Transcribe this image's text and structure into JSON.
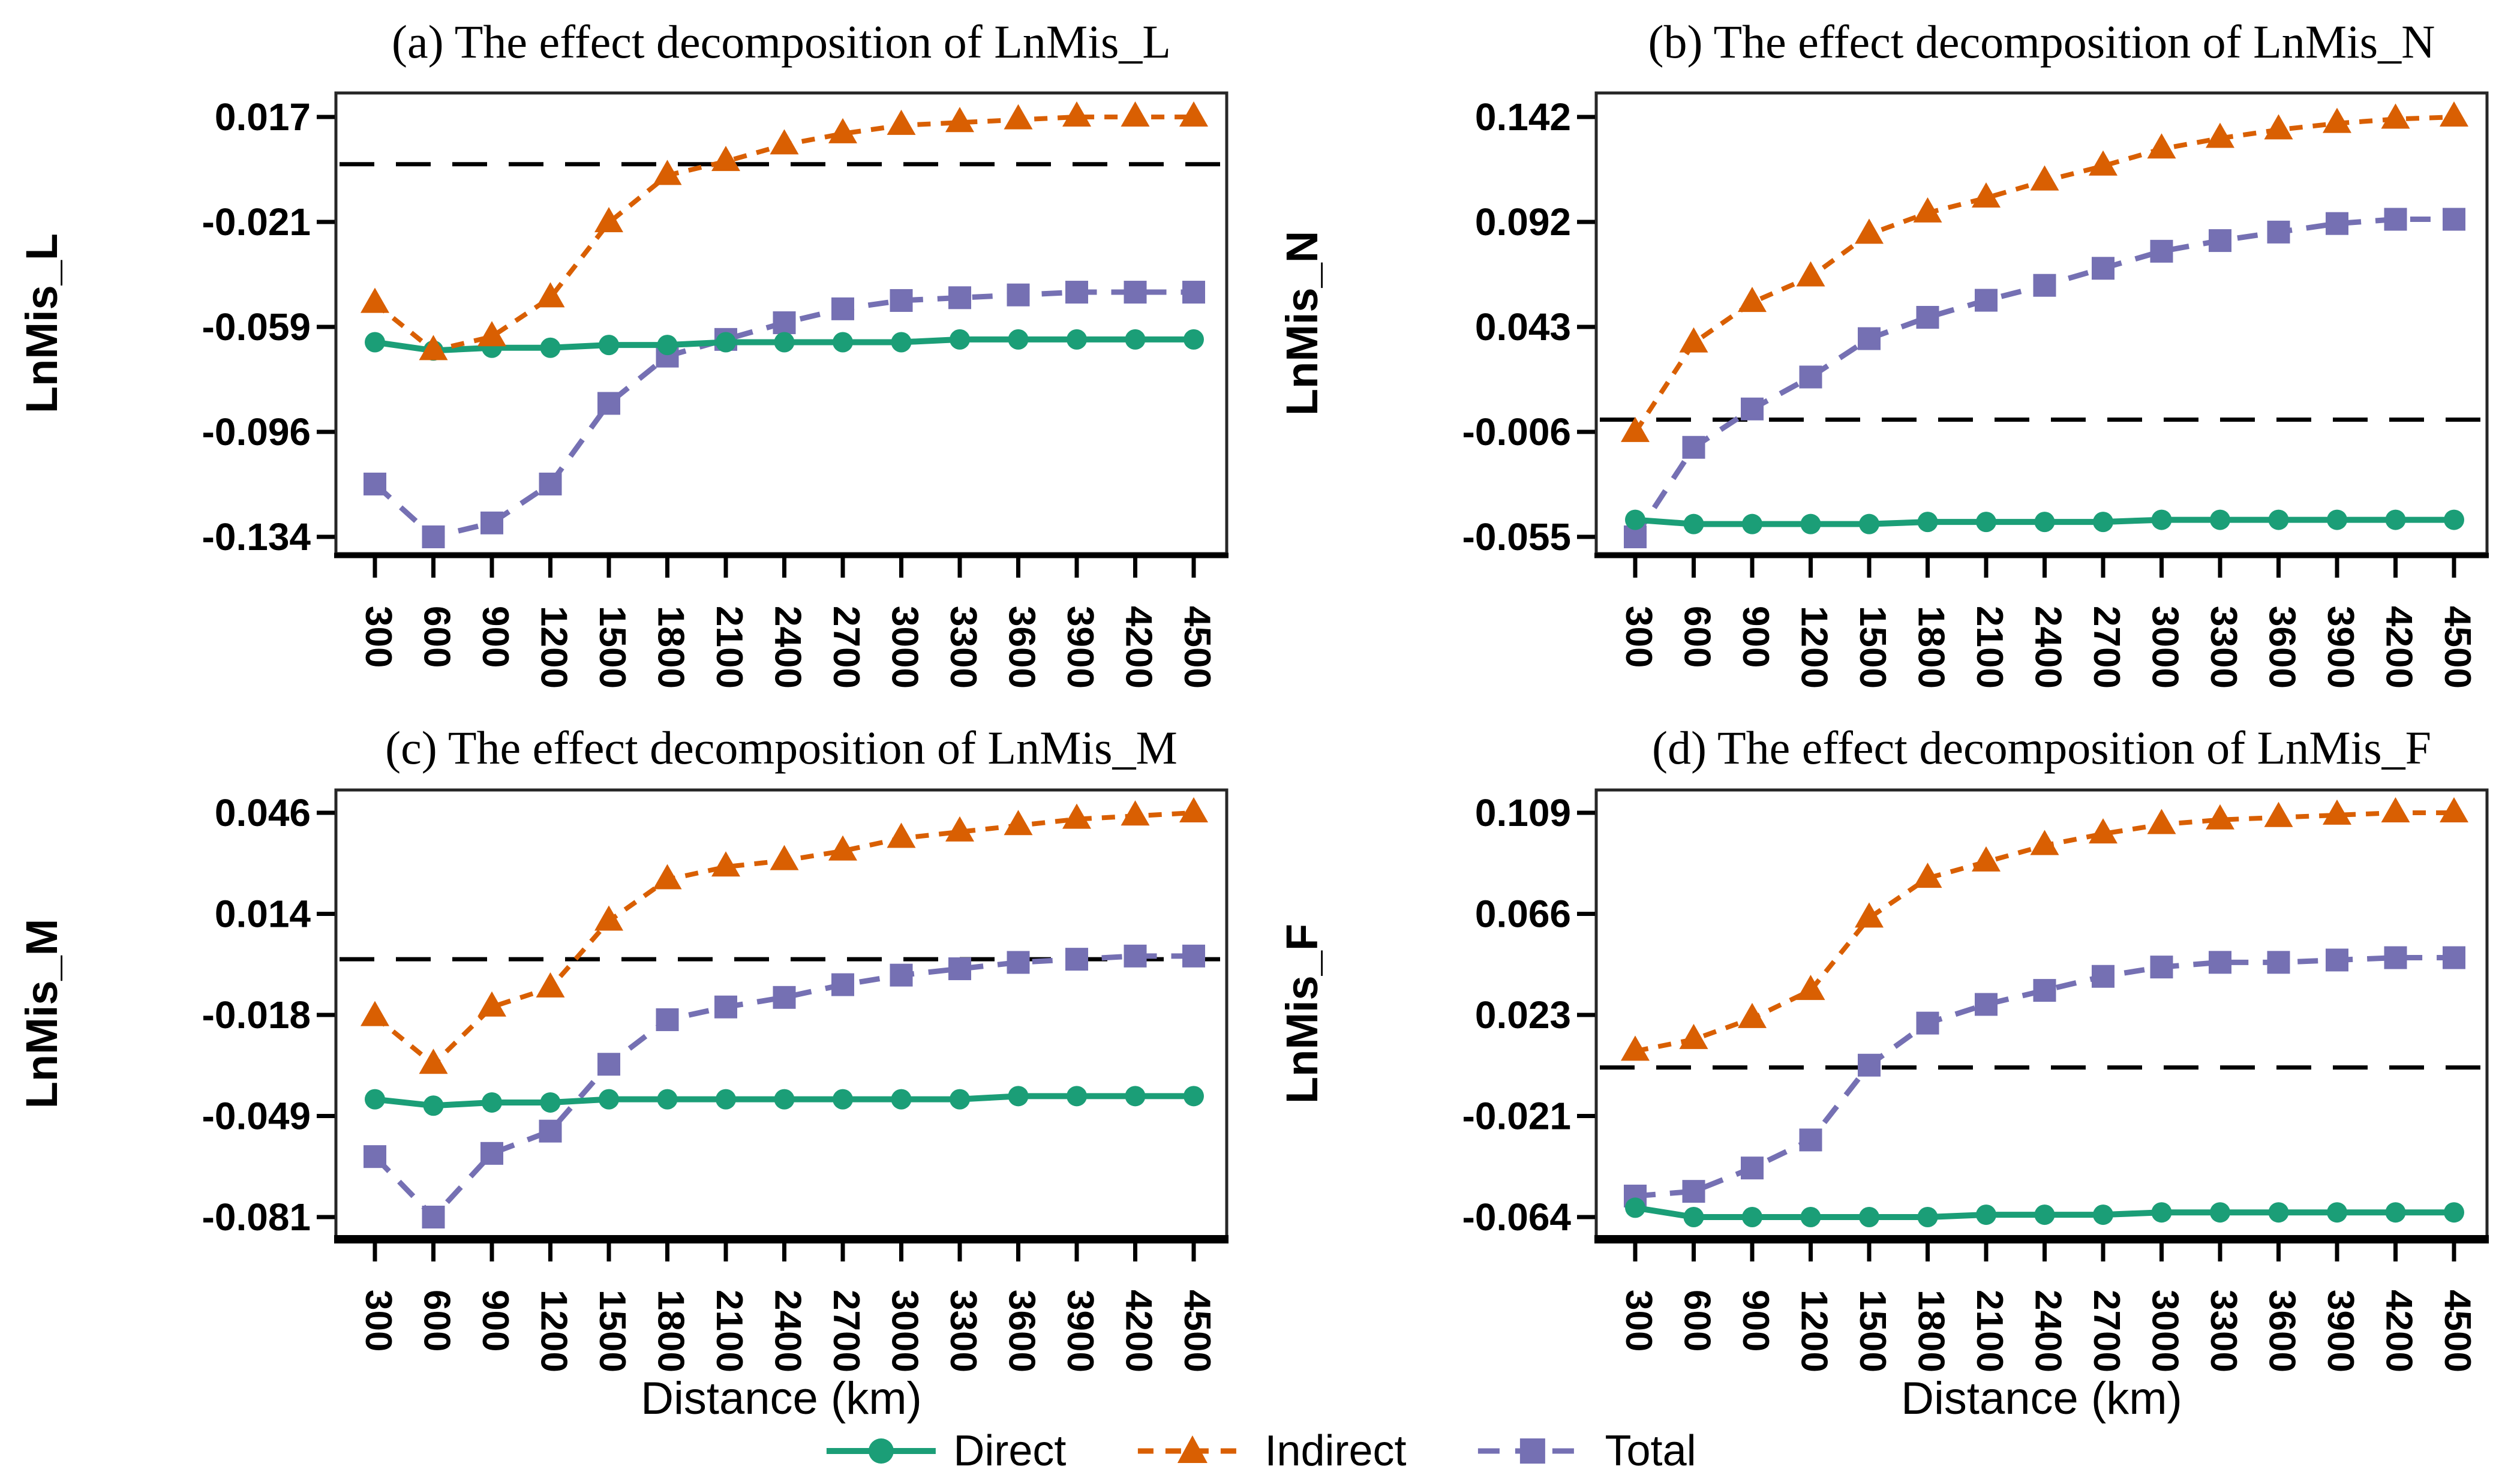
{
  "figure": {
    "xlabel": "Distance (km)",
    "x_categories": [
      300,
      600,
      900,
      1200,
      1500,
      1800,
      2100,
      2400,
      2700,
      3000,
      3300,
      3600,
      3900,
      4200,
      4500
    ],
    "colors": {
      "direct": "#1b9e77",
      "indirect": "#d95f02",
      "total": "#7570b3",
      "zero_line": "#000000",
      "axis": "#262626"
    },
    "legend": [
      {
        "name": "Direct",
        "marker": "circle",
        "line": "solid",
        "color": "#1b9e77"
      },
      {
        "name": "Indirect",
        "marker": "triangle",
        "line": "dashed",
        "color": "#d95f02"
      },
      {
        "name": "Total",
        "marker": "square",
        "line": "dashed",
        "color": "#7570b3"
      }
    ]
  },
  "chart_data": [
    {
      "type": "line",
      "panel": "a",
      "title": "(a) The effect decomposition of LnMis_L",
      "ylabel": "LnMis_L",
      "xlabel": "",
      "yticks": [
        0.017,
        -0.021,
        -0.059,
        -0.096,
        -0.134
      ],
      "zero_line": true,
      "grid": false,
      "x": [
        300,
        600,
        900,
        1200,
        1500,
        1800,
        2100,
        2400,
        2700,
        3000,
        3300,
        3600,
        3900,
        4200,
        4500
      ],
      "series": [
        {
          "name": "Direct",
          "values": [
            -0.064,
            -0.067,
            -0.066,
            -0.066,
            -0.065,
            -0.065,
            -0.064,
            -0.064,
            -0.064,
            -0.064,
            -0.063,
            -0.063,
            -0.063,
            -0.063,
            -0.063
          ]
        },
        {
          "name": "Indirect",
          "values": [
            -0.05,
            -0.067,
            -0.062,
            -0.048,
            -0.021,
            -0.004,
            0.001,
            0.007,
            0.011,
            0.014,
            0.015,
            0.016,
            0.017,
            0.017,
            0.017
          ]
        },
        {
          "name": "Total",
          "values": [
            -0.115,
            -0.134,
            -0.129,
            -0.115,
            -0.086,
            -0.069,
            -0.063,
            -0.057,
            -0.052,
            -0.049,
            -0.048,
            -0.047,
            -0.046,
            -0.046,
            -0.046
          ]
        }
      ]
    },
    {
      "type": "line",
      "panel": "b",
      "title": "(b) The effect decomposition of LnMis_N",
      "ylabel": "LnMis_N",
      "xlabel": "",
      "yticks": [
        0.142,
        0.092,
        0.043,
        -0.006,
        -0.055
      ],
      "zero_line": true,
      "grid": false,
      "x": [
        300,
        600,
        900,
        1200,
        1500,
        1800,
        2100,
        2400,
        2700,
        3000,
        3300,
        3600,
        3900,
        4200,
        4500
      ],
      "series": [
        {
          "name": "Direct",
          "values": [
            -0.047,
            -0.049,
            -0.049,
            -0.049,
            -0.049,
            -0.048,
            -0.048,
            -0.048,
            -0.048,
            -0.047,
            -0.047,
            -0.047,
            -0.047,
            -0.047,
            -0.047
          ]
        },
        {
          "name": "Indirect",
          "values": [
            -0.006,
            0.036,
            0.055,
            0.067,
            0.087,
            0.097,
            0.104,
            0.112,
            0.119,
            0.127,
            0.132,
            0.136,
            0.139,
            0.141,
            0.142
          ]
        },
        {
          "name": "Total",
          "values": [
            -0.055,
            -0.013,
            0.005,
            0.02,
            0.038,
            0.048,
            0.056,
            0.063,
            0.071,
            0.079,
            0.084,
            0.088,
            0.092,
            0.094,
            0.094
          ]
        }
      ]
    },
    {
      "type": "line",
      "panel": "c",
      "title": "(c) The effect decomposition of LnMis_M",
      "ylabel": "LnMis_M",
      "xlabel": "Distance (km)",
      "yticks": [
        0.046,
        0.014,
        -0.018,
        -0.049,
        -0.081
      ],
      "zero_line": true,
      "grid": false,
      "x": [
        300,
        600,
        900,
        1200,
        1500,
        1800,
        2100,
        2400,
        2700,
        3000,
        3300,
        3600,
        3900,
        4200,
        4500
      ],
      "series": [
        {
          "name": "Direct",
          "values": [
            -0.044,
            -0.046,
            -0.045,
            -0.045,
            -0.044,
            -0.044,
            -0.044,
            -0.044,
            -0.044,
            -0.044,
            -0.044,
            -0.043,
            -0.043,
            -0.043,
            -0.043
          ]
        },
        {
          "name": "Indirect",
          "values": [
            -0.018,
            -0.033,
            -0.015,
            -0.009,
            0.012,
            0.025,
            0.029,
            0.031,
            0.034,
            0.038,
            0.04,
            0.042,
            0.044,
            0.045,
            0.046
          ]
        },
        {
          "name": "Total",
          "values": [
            -0.062,
            -0.081,
            -0.061,
            -0.054,
            -0.033,
            -0.019,
            -0.015,
            -0.012,
            -0.008,
            -0.005,
            -0.003,
            -0.001,
            0.0,
            0.001,
            0.001
          ]
        }
      ]
    },
    {
      "type": "line",
      "panel": "d",
      "title": "(d) The effect decomposition of LnMis_F",
      "ylabel": "LnMis_F",
      "xlabel": "Distance (km)",
      "yticks": [
        0.109,
        0.066,
        0.023,
        -0.021,
        -0.064
      ],
      "zero_line": true,
      "grid": false,
      "x": [
        300,
        600,
        900,
        1200,
        1500,
        1800,
        2100,
        2400,
        2700,
        3000,
        3300,
        3600,
        3900,
        4200,
        4500
      ],
      "series": [
        {
          "name": "Direct",
          "values": [
            -0.06,
            -0.064,
            -0.064,
            -0.064,
            -0.064,
            -0.064,
            -0.063,
            -0.063,
            -0.063,
            -0.062,
            -0.062,
            -0.062,
            -0.062,
            -0.062,
            -0.062
          ]
        },
        {
          "name": "Indirect",
          "values": [
            0.007,
            0.012,
            0.021,
            0.033,
            0.064,
            0.081,
            0.088,
            0.095,
            0.1,
            0.104,
            0.106,
            0.107,
            0.108,
            0.109,
            0.109
          ]
        },
        {
          "name": "Total",
          "values": [
            -0.055,
            -0.053,
            -0.043,
            -0.031,
            0.001,
            0.019,
            0.027,
            0.033,
            0.039,
            0.043,
            0.045,
            0.045,
            0.046,
            0.047,
            0.047
          ]
        }
      ]
    }
  ]
}
